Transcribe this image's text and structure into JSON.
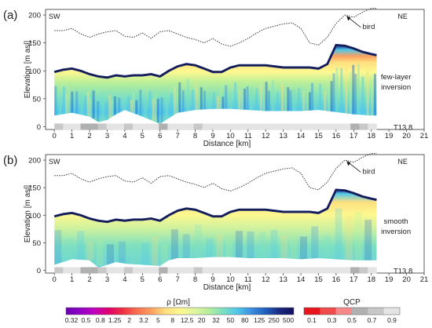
{
  "chart_data": [
    {
      "type": "heatmap",
      "panel_label": "(a)",
      "corner_left": "SW",
      "corner_right": "NE",
      "annotation": "bird",
      "inversion_label": [
        "few-layer",
        "inversion"
      ],
      "line_label": "T13.8",
      "xlabel": "Distance [km]",
      "ylabel": "Elevation [m asl]",
      "xlim": [
        -0.5,
        21
      ],
      "ylim": [
        -5,
        210
      ],
      "x_ticks": [
        0,
        1,
        2,
        3,
        4,
        5,
        6,
        7,
        8,
        9,
        10,
        11,
        12,
        13,
        14,
        15,
        16,
        17,
        18,
        19,
        20,
        21
      ],
      "y_ticks": [
        0,
        50,
        100,
        150,
        200
      ],
      "flight_altitude": {
        "x": [
          0,
          0.5,
          1,
          1.5,
          2,
          2.5,
          3,
          3.5,
          4,
          4.5,
          5,
          5.5,
          6,
          6.5,
          7,
          7.5,
          8,
          8.5,
          9,
          9.5,
          10,
          10.5,
          11,
          11.5,
          12,
          12.5,
          13,
          13.5,
          14,
          14.5,
          15,
          15.5,
          16,
          16.5,
          17,
          17.5,
          18,
          18.3
        ],
        "y": [
          172,
          172,
          176,
          166,
          160,
          166,
          170,
          172,
          162,
          160,
          168,
          158,
          170,
          172,
          166,
          160,
          156,
          150,
          158,
          148,
          144,
          150,
          158,
          168,
          176,
          180,
          184,
          186,
          176,
          150,
          146,
          160,
          185,
          200,
          196,
          205,
          212,
          212
        ]
      },
      "terrain": {
        "x": [
          0,
          0.5,
          1,
          1.5,
          2,
          2.5,
          3,
          3.5,
          4,
          4.5,
          5,
          5.5,
          6,
          6.5,
          7,
          7.5,
          8,
          8.5,
          9,
          9.5,
          10,
          10.5,
          11,
          11.5,
          12,
          12.5,
          13,
          13.5,
          14,
          14.5,
          15,
          15.5,
          16,
          16.5,
          17,
          17.5,
          18,
          18.3
        ],
        "y": [
          98,
          102,
          104,
          100,
          94,
          90,
          88,
          92,
          90,
          92,
          92,
          94,
          90,
          100,
          108,
          112,
          110,
          104,
          98,
          98,
          106,
          110,
          110,
          110,
          110,
          108,
          106,
          106,
          106,
          106,
          104,
          112,
          146,
          145,
          140,
          134,
          130,
          128
        ]
      },
      "bottom": {
        "x": [
          0,
          1,
          2,
          2.5,
          3,
          3.5,
          4,
          5,
          6,
          6.5,
          7,
          8,
          9,
          10,
          11,
          12,
          13,
          14,
          15,
          16,
          17,
          18,
          18.3
        ],
        "y": [
          20,
          25,
          18,
          8,
          12,
          22,
          30,
          18,
          5,
          15,
          25,
          30,
          32,
          32,
          30,
          28,
          28,
          28,
          30,
          26,
          22,
          20,
          20
        ]
      },
      "qcp_strip": [
        0.7,
        0.9,
        0.9,
        0.5,
        0.5,
        0.7,
        0.9,
        0.9,
        0.7,
        0.9,
        0.9,
        0.9,
        0.5,
        0.9,
        0.9,
        0.9,
        0.7,
        0.9,
        0.9,
        0.9,
        0.9,
        0.9,
        0.9,
        0.9,
        0.9,
        0.9,
        0.9,
        0.9,
        0.9,
        0.9,
        0.9,
        0.9,
        0.9,
        0.9,
        0.5,
        0.7,
        0.9
      ]
    },
    {
      "type": "heatmap",
      "panel_label": "(b)",
      "corner_left": "SW",
      "corner_right": "NE",
      "annotation": "bird",
      "inversion_label": [
        "smooth",
        "inversion"
      ],
      "line_label": "T13.8",
      "xlabel": "Distance [km]",
      "ylabel": "Elevation [m asl]",
      "xlim": [
        -0.5,
        21
      ],
      "ylim": [
        -5,
        210
      ],
      "x_ticks": [
        0,
        1,
        2,
        3,
        4,
        5,
        6,
        7,
        8,
        9,
        10,
        11,
        12,
        13,
        14,
        15,
        16,
        17,
        18,
        19,
        20,
        21
      ],
      "y_ticks": [
        0,
        50,
        100,
        150,
        200
      ],
      "flight_altitude": {
        "x": [
          0,
          0.5,
          1,
          1.5,
          2,
          2.5,
          3,
          3.5,
          4,
          4.5,
          5,
          5.5,
          6,
          6.5,
          7,
          7.5,
          8,
          8.5,
          9,
          9.5,
          10,
          10.5,
          11,
          11.5,
          12,
          12.5,
          13,
          13.5,
          14,
          14.5,
          15,
          15.5,
          16,
          16.5,
          17,
          17.5,
          18,
          18.3
        ],
        "y": [
          172,
          172,
          176,
          166,
          160,
          166,
          170,
          172,
          162,
          160,
          168,
          158,
          170,
          172,
          166,
          160,
          156,
          150,
          158,
          148,
          144,
          150,
          158,
          168,
          176,
          180,
          184,
          186,
          176,
          150,
          146,
          160,
          185,
          200,
          196,
          205,
          212,
          212
        ]
      },
      "terrain": {
        "x": [
          0,
          0.5,
          1,
          1.5,
          2,
          2.5,
          3,
          3.5,
          4,
          4.5,
          5,
          5.5,
          6,
          6.5,
          7,
          7.5,
          8,
          8.5,
          9,
          9.5,
          10,
          10.5,
          11,
          11.5,
          12,
          12.5,
          13,
          13.5,
          14,
          14.5,
          15,
          15.5,
          16,
          16.5,
          17,
          17.5,
          18,
          18.3
        ],
        "y": [
          98,
          102,
          104,
          100,
          94,
          90,
          88,
          92,
          90,
          92,
          92,
          94,
          90,
          100,
          108,
          112,
          110,
          104,
          98,
          98,
          106,
          110,
          110,
          110,
          110,
          108,
          106,
          106,
          106,
          106,
          104,
          112,
          146,
          145,
          140,
          134,
          130,
          128
        ]
      },
      "bottom": {
        "x": [
          0,
          1,
          2,
          2.5,
          3,
          3.5,
          4,
          5,
          6,
          6.5,
          7,
          8,
          9,
          10,
          11,
          12,
          13,
          14,
          15,
          16,
          17,
          18,
          18.3
        ],
        "y": [
          10,
          20,
          18,
          5,
          10,
          15,
          12,
          10,
          8,
          18,
          22,
          22,
          24,
          24,
          22,
          22,
          22,
          20,
          22,
          20,
          18,
          18,
          18
        ]
      },
      "qcp_strip": [
        0.7,
        0.9,
        0.9,
        0.5,
        0.5,
        0.7,
        0.9,
        0.9,
        0.7,
        0.9,
        0.9,
        0.9,
        0.5,
        0.9,
        0.9,
        0.9,
        0.7,
        0.9,
        0.9,
        0.9,
        0.9,
        0.9,
        0.9,
        0.9,
        0.9,
        0.9,
        0.9,
        0.9,
        0.9,
        0.9,
        0.9,
        0.9,
        0.9,
        0.9,
        0.5,
        0.7,
        0.9
      ]
    }
  ],
  "colorbars": {
    "rho": {
      "title": "ρ [Ωm]",
      "tick_labels": [
        "0.32",
        "0.5",
        "0.8",
        "1.25",
        "2",
        "3.2",
        "5",
        "8",
        "12.5",
        "20",
        "32",
        "50",
        "80",
        "125",
        "250",
        "500"
      ],
      "colors": [
        "#6a00b0",
        "#9000c8",
        "#c000c0",
        "#e0006a",
        "#f03040",
        "#f87050",
        "#fca060",
        "#fde080",
        "#fdf890",
        "#e0f6a0",
        "#b8ee9a",
        "#7ee0c0",
        "#52c8e8",
        "#3a90e0",
        "#2060c0",
        "#1a2880",
        "#101060"
      ]
    },
    "qcp": {
      "title": "QCP",
      "tick_labels": [
        "0.1",
        "0.3",
        "0.5",
        "0.7",
        "0.9"
      ],
      "colors": [
        "#e8141e",
        "#f04a4a",
        "#f48888",
        "#b0b0b0",
        "#c8c8c8",
        "#e4e4e4"
      ]
    }
  }
}
